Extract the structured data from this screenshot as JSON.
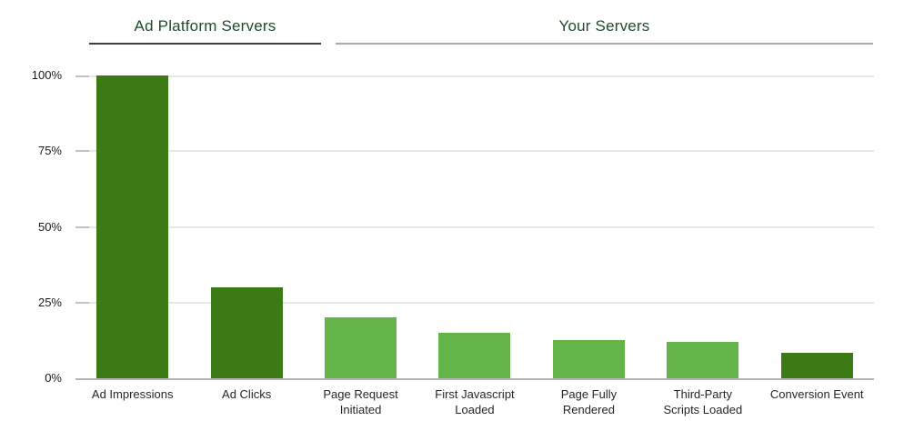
{
  "page": {
    "background": "#ffffff"
  },
  "chart_data": {
    "type": "bar",
    "title": "",
    "categories": [
      "Ad Impressions",
      "Ad Clicks",
      "Page Request Initiated",
      "First Javascript Loaded",
      "Page Fully Rendered",
      "Third-Party Scripts Loaded",
      "Conversion Event"
    ],
    "category_label_lines": [
      [
        "Ad Impressions"
      ],
      [
        "Ad Clicks"
      ],
      [
        "Page Request",
        "Initiated"
      ],
      [
        "First Javascript",
        "Loaded"
      ],
      [
        "Page Fully",
        "Rendered"
      ],
      [
        "Third-Party",
        "Scripts Loaded"
      ],
      [
        "Conversion Event"
      ]
    ],
    "values": [
      100,
      30,
      20,
      15,
      12.5,
      12,
      8.5
    ],
    "unit": "%",
    "ylim": [
      0,
      100
    ],
    "grid": true,
    "legend": "none",
    "bar_colors": [
      "#3b7a15",
      "#3b7a15",
      "#63b54a",
      "#63b54a",
      "#63b54a",
      "#63b54a",
      "#3b7a15"
    ],
    "palette": {
      "dark_green": "#3b7a15",
      "light_green": "#63b54a"
    },
    "y_ticks": [
      {
        "label": "100%",
        "value": 100
      },
      {
        "label": "75%",
        "value": 75
      },
      {
        "label": "50%",
        "value": 50
      },
      {
        "label": "25%",
        "value": 25
      },
      {
        "label": "0%",
        "value": 0
      }
    ],
    "groups": [
      {
        "label": "Ad Platform Servers",
        "rule_color": "#3f3f3f",
        "title_color": "#1e4b29",
        "bar_indexes": [
          0,
          1
        ]
      },
      {
        "label": "Your Servers",
        "rule_color": "#ababab",
        "title_color": "#1e4b29",
        "bar_indexes": [
          2,
          3,
          4,
          5,
          6
        ]
      }
    ],
    "axis_colors": {
      "gridline": "#e7e7e7",
      "tick": "#c2c2c2",
      "baseline": "#b5b5b5",
      "tick_label": "#1a1a1a",
      "category_label": "#262626"
    }
  }
}
